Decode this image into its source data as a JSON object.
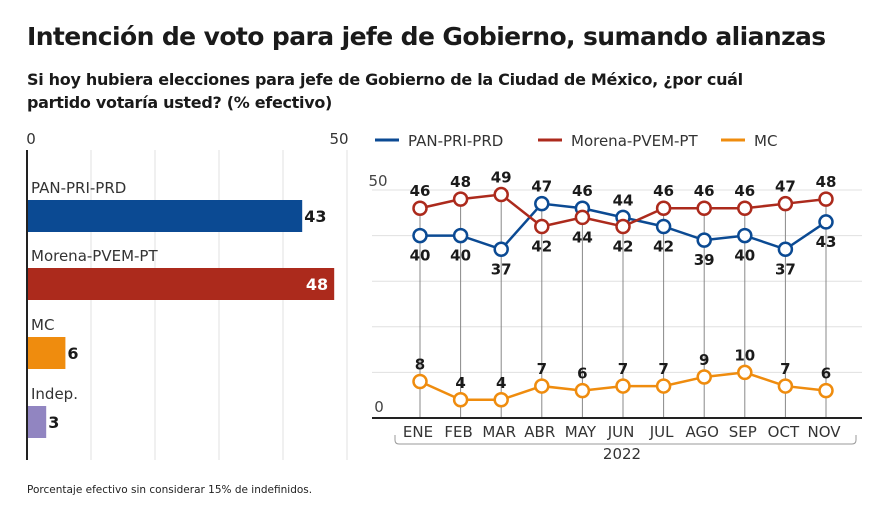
{
  "title": "Intención de voto para jefe de Gobierno, sumando alianzas",
  "subtitle": "Si hoy hubiera elecciones para jefe de Gobierno de la Ciudad de México, ¿por cuál partido votaría usted? (% efectivo)",
  "note": "Porcentaje efectivo sin considerar 15% de indefinidos.",
  "chart_data": [
    {
      "type": "bar",
      "orientation": "horizontal",
      "categories": [
        "PAN-PRI-PRD",
        "Morena-PVEM-PT",
        "MC",
        "Indep."
      ],
      "values": [
        43,
        48,
        6,
        3
      ],
      "colors": [
        "#0b4a93",
        "#ac2a1c",
        "#ef8c0e",
        "#9185c1"
      ],
      "xlim": [
        0,
        50
      ],
      "tick_labels": [
        "0",
        "50"
      ],
      "grid": true
    },
    {
      "type": "line",
      "x": [
        "ENE",
        "FEB",
        "MAR",
        "ABR",
        "MAY",
        "JUN",
        "JUL",
        "AGO",
        "SEP",
        "OCT",
        "NOV"
      ],
      "xgroup_label": "2022",
      "ylim": [
        0,
        50
      ],
      "ytick_labels": [
        "0",
        "50"
      ],
      "grid": true,
      "legend_position": "top",
      "series": [
        {
          "name": "PAN-PRI-PRD",
          "color": "#0b4a93",
          "values": [
            40,
            40,
            37,
            47,
            46,
            44,
            42,
            39,
            40,
            37,
            43
          ],
          "label_pos": [
            "below",
            "below",
            "below",
            "above",
            "above",
            "above",
            "below",
            "below",
            "below",
            "below",
            "below"
          ]
        },
        {
          "name": "Morena-PVEM-PT",
          "color": "#ac2a1c",
          "values": [
            46,
            48,
            49,
            42,
            44,
            42,
            46,
            46,
            46,
            47,
            48
          ],
          "label_pos": [
            "above",
            "above",
            "above",
            "below",
            "below",
            "below",
            "above",
            "above",
            "above",
            "above",
            "above"
          ]
        },
        {
          "name": "MC",
          "color": "#ef8c0e",
          "values": [
            8,
            4,
            4,
            7,
            6,
            7,
            7,
            9,
            10,
            7,
            6
          ],
          "label_pos": [
            "above",
            "above",
            "above",
            "above",
            "above",
            "above",
            "above",
            "above",
            "above",
            "above",
            "above"
          ]
        }
      ]
    }
  ]
}
